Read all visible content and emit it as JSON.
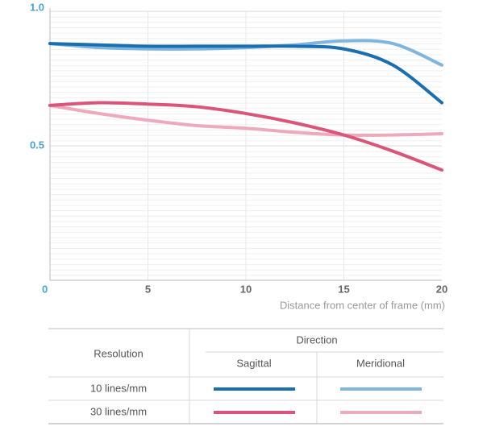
{
  "chart_data": {
    "type": "line",
    "x_label": "Distance from center of frame (mm)",
    "x": [
      0,
      2.5,
      5,
      7.5,
      10,
      12.5,
      15,
      17.5,
      20
    ],
    "xlim": [
      0,
      20
    ],
    "xticks": [
      0,
      5,
      10,
      15,
      20
    ],
    "ylim": [
      0,
      1
    ],
    "yticks": [
      {
        "value": 0.5,
        "label": "0.5"
      },
      {
        "value": 1,
        "label": "1.0"
      }
    ],
    "grid": true,
    "series": [
      {
        "resolution": "10 lines/mm",
        "direction": "Sagittal",
        "color": "#1a6fb0",
        "values": [
          0.88,
          0.875,
          0.87,
          0.87,
          0.87,
          0.87,
          0.86,
          0.8,
          0.66
        ]
      },
      {
        "resolution": "10 lines/mm",
        "direction": "Meridional",
        "color": "#7fb6df",
        "values": [
          0.88,
          0.865,
          0.86,
          0.86,
          0.865,
          0.875,
          0.89,
          0.88,
          0.8
        ]
      },
      {
        "resolution": "30 lines/mm",
        "direction": "Sagittal",
        "color": "#d9557a",
        "values": [
          0.65,
          0.66,
          0.655,
          0.645,
          0.62,
          0.585,
          0.54,
          0.48,
          0.41
        ]
      },
      {
        "resolution": "30 lines/mm",
        "direction": "Meridional",
        "color": "#eeaabd",
        "values": [
          0.65,
          0.62,
          0.595,
          0.575,
          0.565,
          0.55,
          0.54,
          0.54,
          0.545
        ]
      }
    ],
    "legend_table": {
      "row_header": "Resolution",
      "column_header": "Direction"
    }
  }
}
